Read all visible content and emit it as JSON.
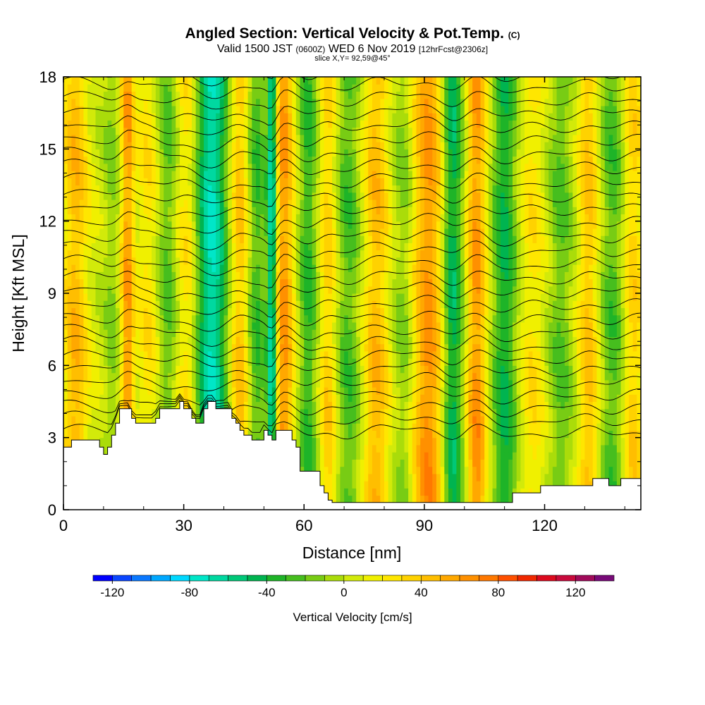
{
  "chart_data": {
    "type": "heatmap",
    "title": "Angled Section: Vertical Velocity & Pot.Temp.",
    "title_tag": "(C)",
    "valid_prefix": "Valid 1500 JST",
    "valid_utc": "(0600Z)",
    "valid_date": "WED 6 Nov 2019",
    "valid_fcst": "[12hrFcst@2306z]",
    "slice": "slice X,Y= 92,59@45°",
    "xlabel": "Distance [nm]",
    "ylabel": "Height [Kft MSL]",
    "xlim": [
      0,
      144
    ],
    "ylim": [
      0,
      18
    ],
    "x_ticks": [
      0,
      30,
      60,
      90,
      120
    ],
    "y_ticks": [
      0,
      3,
      6,
      9,
      12,
      15,
      18
    ],
    "colorbar": {
      "label": "Vertical Velocity [cm/s]",
      "ticks": [
        -120,
        -80,
        -40,
        0,
        40,
        80,
        120
      ],
      "levels": [
        -130,
        -120,
        -110,
        -100,
        -90,
        -80,
        -70,
        -60,
        -50,
        -40,
        -30,
        -20,
        -10,
        0,
        10,
        20,
        30,
        40,
        50,
        60,
        70,
        80,
        90,
        100,
        110,
        120,
        130,
        140
      ],
      "colors": [
        "#0000ff",
        "#0a46ff",
        "#0a78ff",
        "#00a8ff",
        "#00d8ff",
        "#00e6c8",
        "#00d8a0",
        "#00c878",
        "#00b450",
        "#1eb428",
        "#46be1e",
        "#78cc14",
        "#aadc0a",
        "#d2ea0a",
        "#f0f000",
        "#ffe600",
        "#ffd200",
        "#ffbe00",
        "#ffa800",
        "#ff9000",
        "#ff7800",
        "#ff5000",
        "#f02800",
        "#dc0a1e",
        "#c80a3c",
        "#a00a5a",
        "#780a78"
      ]
    },
    "terrain_profile": {
      "x": [
        0,
        2,
        2,
        9,
        9,
        10,
        10,
        11,
        11,
        12,
        12,
        13,
        13,
        14,
        14,
        15,
        15,
        16,
        16,
        17,
        17,
        18,
        18,
        19,
        19,
        23,
        23,
        24,
        24,
        25,
        25,
        29,
        29,
        30,
        30,
        32,
        32,
        33,
        33,
        34,
        34,
        35,
        35,
        36,
        36,
        37,
        37,
        38,
        38,
        42,
        42,
        43,
        43,
        44,
        44,
        45,
        45,
        46,
        46,
        47,
        47,
        48,
        48,
        50,
        50,
        51,
        51,
        52,
        52,
        53,
        53,
        54,
        54,
        57,
        57,
        58,
        58,
        59,
        59,
        60,
        60,
        64,
        64,
        65,
        65,
        66,
        66,
        67,
        67,
        68,
        68,
        70,
        70,
        112,
        112,
        114,
        114,
        119,
        119,
        128,
        128,
        132,
        132,
        136,
        136,
        139,
        139,
        144
      ],
      "y": [
        2.6,
        2.6,
        2.9,
        2.9,
        2.6,
        2.6,
        2.3,
        2.3,
        2.6,
        2.6,
        3.1,
        3.1,
        3.6,
        3.6,
        4.2,
        4.2,
        4.2,
        4.2,
        4.2,
        4.2,
        3.8,
        3.8,
        3.6,
        3.6,
        3.6,
        3.6,
        3.8,
        3.8,
        4.2,
        4.2,
        4.2,
        4.2,
        4.5,
        4.5,
        4.2,
        4.2,
        3.8,
        3.8,
        3.6,
        3.6,
        3.6,
        3.6,
        4.2,
        4.2,
        4.5,
        4.5,
        4.5,
        4.5,
        4.2,
        4.2,
        3.8,
        3.8,
        3.6,
        3.6,
        3.3,
        3.3,
        3.1,
        3.1,
        3.1,
        3.1,
        2.9,
        2.9,
        2.9,
        2.9,
        3.3,
        3.3,
        3.1,
        3.1,
        2.9,
        2.9,
        3.3,
        3.3,
        3.3,
        3.3,
        2.9,
        2.9,
        2.6,
        2.6,
        1.6,
        1.6,
        1.6,
        1.6,
        1.0,
        1.0,
        0.7,
        0.7,
        0.4,
        0.4,
        0.3,
        0.3,
        0.3,
        0.3,
        0.3,
        0.3,
        0.7,
        0.7,
        0.7,
        0.7,
        1.0,
        1.0,
        1.0,
        1.0,
        1.3,
        1.3,
        1.0,
        1.0,
        1.3,
        1.3
      ]
    },
    "velocity_columns": [
      {
        "x": 3,
        "w": 3,
        "amp": 40
      },
      {
        "x": 12,
        "w": 2,
        "amp": -15
      },
      {
        "x": 16,
        "w": 1.6,
        "amp": 55
      },
      {
        "x": 21,
        "w": 2.2,
        "amp": 20
      },
      {
        "x": 26,
        "w": 2.2,
        "amp": -25
      },
      {
        "x": 31,
        "w": 2.5,
        "amp": 25
      },
      {
        "x": 37,
        "w": 4,
        "amp": -75
      },
      {
        "x": 44,
        "w": 2.6,
        "amp": 40
      },
      {
        "x": 48,
        "w": 2.5,
        "amp": -35
      },
      {
        "x": 52,
        "w": 1.2,
        "amp": -80
      },
      {
        "x": 55,
        "w": 2.4,
        "amp": 55
      },
      {
        "x": 61,
        "w": 2.4,
        "amp": -35
      },
      {
        "x": 66,
        "w": 2.2,
        "amp": 30
      },
      {
        "x": 71,
        "w": 3,
        "amp": -30
      },
      {
        "x": 78,
        "w": 3,
        "amp": 40
      },
      {
        "x": 85,
        "w": 2.6,
        "amp": -20
      },
      {
        "x": 91,
        "w": 4,
        "amp": 55
      },
      {
        "x": 97,
        "w": 2.6,
        "amp": -55
      },
      {
        "x": 103,
        "w": 2.4,
        "amp": 55
      },
      {
        "x": 110,
        "w": 3,
        "amp": -45
      },
      {
        "x": 117,
        "w": 3,
        "amp": 20
      },
      {
        "x": 124,
        "w": 3,
        "amp": -25
      },
      {
        "x": 131,
        "w": 2.5,
        "amp": 35
      },
      {
        "x": 137,
        "w": 3,
        "amp": -30
      },
      {
        "x": 142,
        "w": 2.5,
        "amp": 30
      }
    ],
    "isentrope_count": 30
  }
}
